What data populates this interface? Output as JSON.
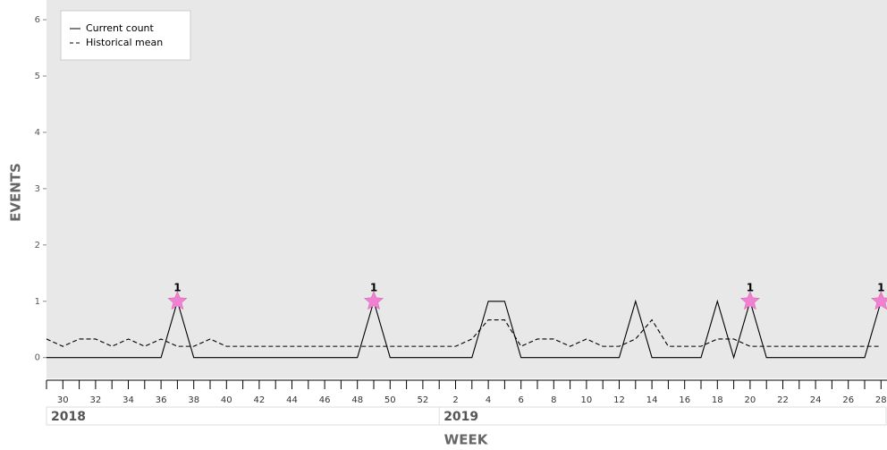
{
  "chart_data": {
    "type": "line",
    "y_label": "EVENTS",
    "x_label": "WEEK",
    "categories": [
      null,
      30,
      null,
      32,
      null,
      34,
      null,
      36,
      null,
      38,
      null,
      40,
      null,
      42,
      null,
      44,
      null,
      46,
      null,
      48,
      null,
      50,
      null,
      52,
      null,
      2,
      null,
      4,
      null,
      6,
      null,
      8,
      null,
      10,
      null,
      12,
      null,
      14,
      null,
      16,
      null,
      18,
      null,
      20,
      null,
      22,
      null,
      24,
      null,
      26,
      null,
      28
    ],
    "year_labels": [
      "2018",
      "2019"
    ],
    "series": [
      {
        "name": "Current count",
        "color": "#000000",
        "dashed": false,
        "values": [
          0,
          0,
          0,
          0,
          0,
          0,
          0,
          0,
          1,
          0,
          0,
          0,
          0,
          0,
          0,
          0,
          0,
          0,
          0,
          0,
          1,
          0,
          0,
          0,
          0,
          0,
          0,
          1,
          1,
          0,
          0,
          0,
          0,
          0,
          0,
          0,
          1,
          0,
          0,
          0,
          0,
          1,
          0,
          1,
          0,
          0,
          0,
          0,
          0,
          0,
          0,
          1
        ]
      },
      {
        "name": "Historical mean",
        "color": "#000000",
        "dashed": true,
        "values": [
          0.33,
          0.2,
          0.33,
          0.33,
          0.2,
          0.33,
          0.2,
          0.33,
          0.2,
          0.2,
          0.33,
          0.2,
          0.2,
          0.2,
          0.2,
          0.2,
          0.2,
          0.2,
          0.2,
          0.2,
          0.2,
          0.2,
          0.2,
          0.2,
          0.2,
          0.2,
          0.33,
          0.67,
          0.67,
          0.2,
          0.33,
          0.33,
          0.2,
          0.33,
          0.2,
          0.2,
          0.33,
          0.67,
          0.2,
          0.2,
          0.2,
          0.33,
          0.33,
          0.2,
          0.2,
          0.2,
          0.2,
          0.2,
          0.2,
          0.2,
          0.2,
          0.2
        ]
      }
    ],
    "alerts": {
      "color": "#f080d0",
      "marker": "star",
      "values": [
        null,
        null,
        null,
        null,
        null,
        null,
        null,
        null,
        1,
        null,
        null,
        null,
        null,
        null,
        null,
        null,
        null,
        null,
        null,
        null,
        1,
        null,
        null,
        null,
        null,
        null,
        null,
        null,
        null,
        null,
        null,
        null,
        null,
        null,
        null,
        null,
        null,
        null,
        null,
        null,
        null,
        null,
        null,
        1,
        null,
        null,
        null,
        null,
        null,
        null,
        null,
        1
      ]
    },
    "ylim": [
      -0.37,
      6.35
    ],
    "yticks": [
      0,
      1,
      2,
      3,
      4,
      5,
      6
    ],
    "grid": false,
    "legend": "upper left",
    "background": "#e8e8e8"
  }
}
